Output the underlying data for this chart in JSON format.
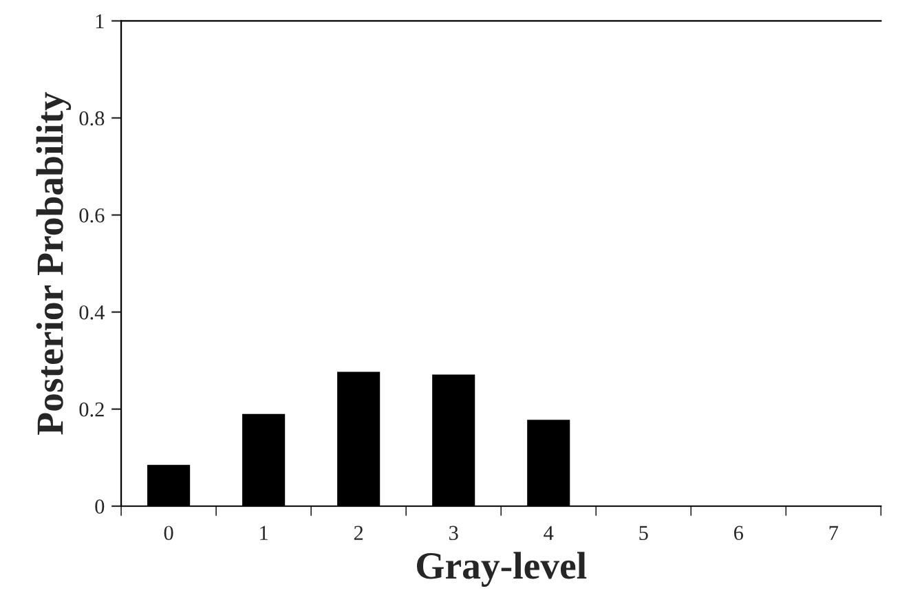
{
  "chart_data": {
    "type": "bar",
    "xlabel": "Gray-level",
    "ylabel": "Posterior Probability",
    "categories": [
      "0",
      "1",
      "2",
      "3",
      "4",
      "5",
      "6",
      "7"
    ],
    "values": [
      0.085,
      0.19,
      0.277,
      0.271,
      0.178,
      0,
      0,
      0
    ],
    "color": "#000000",
    "ylim": [
      0,
      1
    ],
    "yticks": [
      0,
      0.2,
      0.4,
      0.6,
      0.8,
      1
    ],
    "grid": false,
    "legend": false
  }
}
